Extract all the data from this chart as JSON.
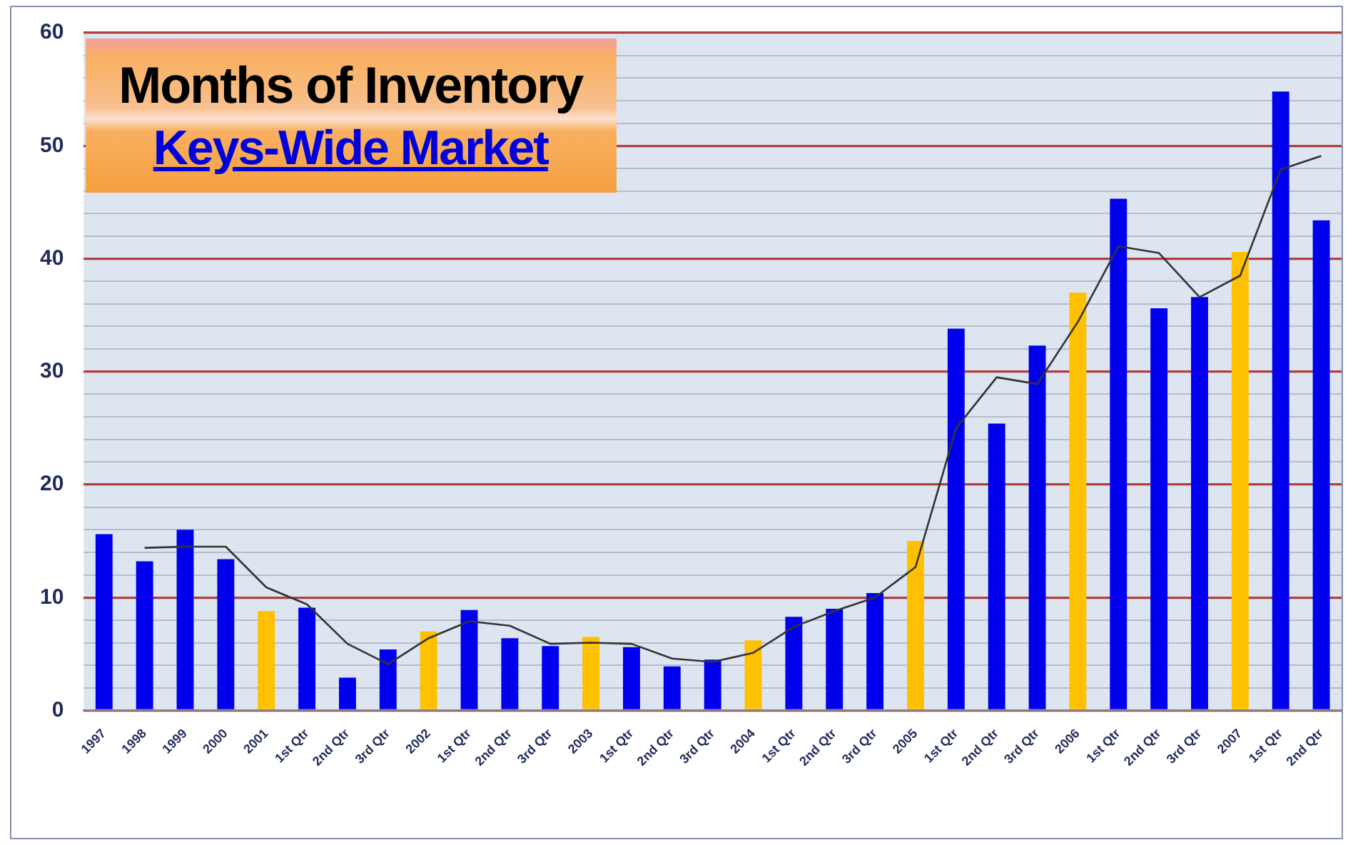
{
  "chart_data": {
    "type": "bar",
    "title": "Months of Inventory",
    "subtitle": "Keys-Wide Market",
    "categories": [
      "1997",
      "1998",
      "1999",
      "2000",
      "2001",
      "1st Qtr",
      "2nd Qtr",
      "3rd Qtr",
      "2002",
      "1st Qtr",
      "2nd Qtr",
      "3rd Qtr",
      "2003",
      "1st Qtr",
      "2nd Qtr",
      "3rd Qtr",
      "2004",
      "1st Qtr",
      "2nd Qtr",
      "3rd Qtr",
      "2005",
      "1st Qtr",
      "2nd Qtr",
      "3rd Qtr",
      "2006",
      "1st Qtr",
      "2nd Qtr",
      "3rd Qtr",
      "2007",
      "1st Qtr",
      "2nd Qtr"
    ],
    "series": [
      {
        "values": [
          15.6,
          13.2,
          16.0,
          13.4,
          8.8,
          9.1,
          2.9,
          5.4,
          7.0,
          8.9,
          6.4,
          5.7,
          6.5,
          5.6,
          3.9,
          4.5,
          6.2,
          8.3,
          9.0,
          10.4,
          15.0,
          33.8,
          25.4,
          32.3,
          37.0,
          45.3,
          35.6,
          36.6,
          40.6,
          54.8,
          43.4
        ],
        "colors": [
          "#0000ee",
          "#0000ee",
          "#0000ee",
          "#0000ee",
          "#ffc000",
          "#0000ee",
          "#0000ee",
          "#0000ee",
          "#ffc000",
          "#0000ee",
          "#0000ee",
          "#0000ee",
          "#ffc000",
          "#0000ee",
          "#0000ee",
          "#0000ee",
          "#ffc000",
          "#0000ee",
          "#0000ee",
          "#0000ee",
          "#ffc000",
          "#0000ee",
          "#0000ee",
          "#0000ee",
          "#ffc000",
          "#0000ee",
          "#0000ee",
          "#0000ee",
          "#ffc000",
          "#0000ee",
          "#0000ee"
        ]
      },
      {
        "type": "line",
        "color": "#333333",
        "values": [
          null,
          14.4,
          14.5,
          14.5,
          10.9,
          9.4,
          5.9,
          4.1,
          6.4,
          7.9,
          7.5,
          5.9,
          6.0,
          5.9,
          4.6,
          4.3,
          5.1,
          7.4,
          8.8,
          10.0,
          12.7,
          25.0,
          29.5,
          28.9,
          34.4,
          41.1,
          40.5,
          36.6,
          38.5,
          47.9,
          49.1
        ]
      }
    ],
    "ylim": [
      0,
      60
    ],
    "yticks": [
      0,
      {
        "value": 2,
        "label": null
      },
      {
        "value": 4,
        "label": null
      },
      {
        "value": 6,
        "label": null
      },
      {
        "value": 8,
        "label": null
      },
      10,
      {
        "value": 12,
        "label": null
      },
      {
        "value": 14,
        "label": null
      },
      {
        "value": 16,
        "label": null
      },
      {
        "value": 18,
        "label": null
      },
      20,
      {
        "value": 22,
        "label": null
      },
      {
        "value": 24,
        "label": null
      },
      {
        "value": 26,
        "label": null
      },
      {
        "value": 28,
        "label": null
      },
      30,
      {
        "value": 32,
        "label": null
      },
      {
        "value": 34,
        "label": null
      },
      {
        "value": 36,
        "label": null
      },
      {
        "value": 38,
        "label": null
      },
      40,
      {
        "value": 42,
        "label": null
      },
      {
        "value": 44,
        "label": null
      },
      {
        "value": 46,
        "label": null
      },
      {
        "value": 48,
        "label": null
      },
      50,
      {
        "value": 52,
        "label": null
      },
      {
        "value": 54,
        "label": null
      },
      {
        "value": 56,
        "label": null
      },
      {
        "value": 58,
        "label": null
      },
      60
    ],
    "grid": "y",
    "legend": false,
    "marker": "none",
    "line_style": "solid"
  }
}
